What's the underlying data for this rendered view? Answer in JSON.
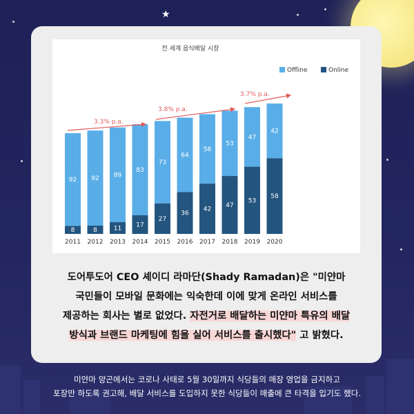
{
  "colors": {
    "background": "#1e2157",
    "card": "#eeeeee",
    "offline": "#5aaee8",
    "online": "#24557f",
    "growth_arrow": "#e05a5a",
    "highlight": "#f9d7d7"
  },
  "chart_data": {
    "type": "bar",
    "stacked": true,
    "title": "전 세계 음식배달 시장",
    "categories": [
      "2011",
      "2012",
      "2013",
      "2014",
      "2015",
      "2016",
      "2017",
      "2018",
      "2019",
      "2020"
    ],
    "series": [
      {
        "name": "Online",
        "values": [
          8,
          8,
          11,
          17,
          27,
          36,
          42,
          47,
          53,
          58
        ]
      },
      {
        "name": "Offline",
        "values": [
          92,
          92,
          89,
          83,
          73,
          64,
          58,
          53,
          47,
          42
        ]
      }
    ],
    "legend": [
      "Offline",
      "Online"
    ],
    "legend_position": "top-right",
    "growth_labels": [
      "3.3% p.a.",
      "3.8% p.a.",
      "3.7% p.a."
    ],
    "grid": false
  },
  "body_text": {
    "line1": "도어투도어 CEO 셰이디 라마단(Shady Ramadan)은 \"미얀마",
    "line2": "국민들이 모바일 문화에는 익숙한데 이에 맞게 온라인 서비스를",
    "line3_plain": "제공하는 회사는 별로 없었다. ",
    "line3_highlight": "자전거로 배달하는 미얀마 특유의 배달",
    "line4_highlight": "방식과 브랜드 마케팅에 힘을 실어 서비스를 출시했다\"",
    "line4_plain": " 고 밝혔다."
  },
  "footer": {
    "line1": "미얀마 양곤에서는 코로나 사태로 5월 30일까지 식당들의 매장 영업을 금지하고",
    "line2": "포장만 하도록 권고해, 배달 서비스를 도입하지 못한 식당들이 매출에 큰 타격을 입기도 했다."
  }
}
